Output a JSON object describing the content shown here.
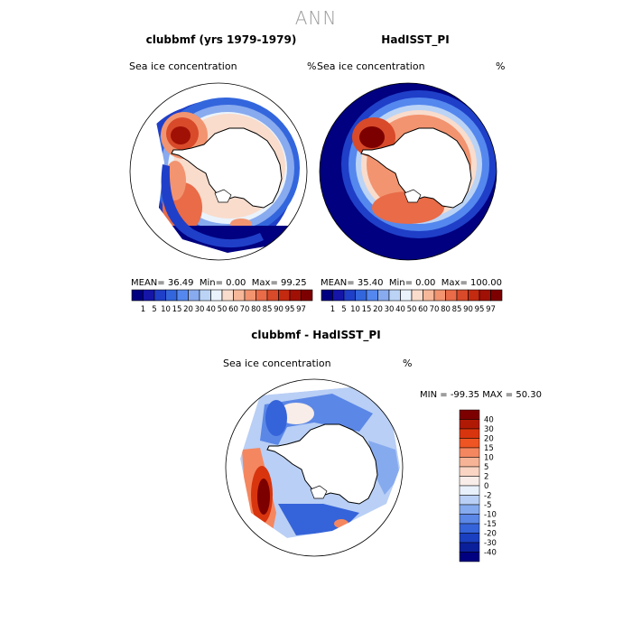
{
  "page": {
    "title": "ANN"
  },
  "chart_data": [
    {
      "type": "heatmap",
      "projection": "south-polar-stereographic",
      "title": "clubbmf (yrs 1979-1979)",
      "variable": "Sea ice concentration",
      "units": "%",
      "mean_label": "MEAN=",
      "mean": "36.49",
      "min_label": "Min=",
      "min": "0.00",
      "max_label": "Max=",
      "max": "99.25",
      "levels": [
        "1",
        "5",
        "10",
        "15",
        "20",
        "30",
        "40",
        "50",
        "60",
        "70",
        "80",
        "85",
        "90",
        "95",
        "97"
      ],
      "colors": [
        "#000080",
        "#1515a8",
        "#1f3fc8",
        "#3366dd",
        "#5588ee",
        "#88aaee",
        "#bbd4f6",
        "#eaf3fb",
        "#f9dccc",
        "#f7b89a",
        "#f29470",
        "#e96b48",
        "#d84a2a",
        "#c42a10",
        "#a01005",
        "#7d0000"
      ]
    },
    {
      "type": "heatmap",
      "projection": "south-polar-stereographic",
      "title": "HadISST_PI",
      "variable": "Sea ice concentration",
      "units": "%",
      "mean_label": "MEAN=",
      "mean": "35.40",
      "min_label": "Min=",
      "min": "0.00",
      "max_label": "Max=",
      "max": "100.00",
      "levels": [
        "1",
        "5",
        "10",
        "15",
        "20",
        "30",
        "40",
        "50",
        "60",
        "70",
        "80",
        "85",
        "90",
        "95",
        "97"
      ],
      "colors": [
        "#000080",
        "#1515a8",
        "#1f3fc8",
        "#3366dd",
        "#5588ee",
        "#88aaee",
        "#bbd4f6",
        "#eaf3fb",
        "#f9dccc",
        "#f7b89a",
        "#f29470",
        "#e96b48",
        "#d84a2a",
        "#c42a10",
        "#a01005",
        "#7d0000"
      ]
    },
    {
      "type": "heatmap",
      "projection": "south-polar-stereographic",
      "title": "clubbmf - HadISST_PI",
      "variable": "Sea ice concentration",
      "units": "%",
      "min_label": "MIN =",
      "min": "-99.35",
      "max_label": "MAX =",
      "max": "50.30",
      "levels": [
        "40",
        "30",
        "20",
        "15",
        "10",
        "5",
        "2",
        "0",
        "-2",
        "-5",
        "-10",
        "-15",
        "-20",
        "-30",
        "-40"
      ],
      "colors": [
        "#7d0000",
        "#b01a05",
        "#d8350e",
        "#ee5522",
        "#f48760",
        "#f7b396",
        "#fad5c4",
        "#f8ede8",
        "#e8f0fb",
        "#b9cff5",
        "#86aaee",
        "#5b87e6",
        "#3563d9",
        "#1a3fc0",
        "#0a1f9a",
        "#000080"
      ]
    }
  ]
}
